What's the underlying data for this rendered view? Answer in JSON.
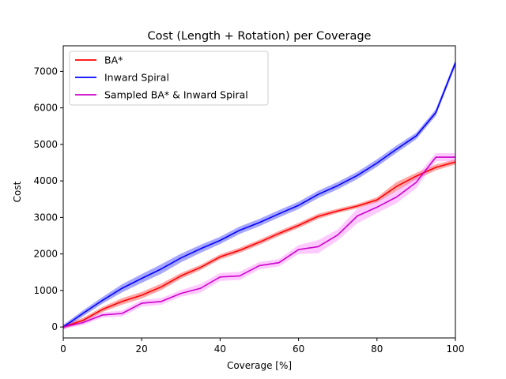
{
  "chart_data": {
    "type": "line",
    "title": "Cost (Length + Rotation) per Coverage",
    "xlabel": "Coverage [%]",
    "ylabel": "Cost",
    "xlim": [
      0,
      100
    ],
    "ylim": [
      -300,
      7700
    ],
    "xticks": [
      0,
      20,
      40,
      60,
      80,
      100
    ],
    "yticks": [
      0,
      1000,
      2000,
      3000,
      4000,
      5000,
      6000,
      7000
    ],
    "grid": false,
    "legend_position": "upper-left",
    "x": [
      0,
      5,
      10,
      15,
      20,
      25,
      30,
      35,
      40,
      45,
      50,
      55,
      60,
      65,
      70,
      75,
      80,
      85,
      90,
      95,
      100
    ],
    "series": [
      {
        "name": "BA*",
        "color": "#ff0000",
        "values": [
          0,
          180,
          480,
          700,
          870,
          1100,
          1400,
          1630,
          1920,
          2100,
          2320,
          2560,
          2780,
          3030,
          3180,
          3310,
          3480,
          3850,
          4130,
          4370,
          4520
        ],
        "band": [
          60,
          70,
          70,
          90,
          90,
          90,
          80,
          70,
          70,
          70,
          70,
          70,
          70,
          70,
          60,
          60,
          70,
          120,
          90,
          80,
          70
        ]
      },
      {
        "name": "Inward Spiral",
        "color": "#0000ff",
        "values": [
          0,
          370,
          730,
          1060,
          1330,
          1590,
          1890,
          2140,
          2370,
          2650,
          2860,
          3100,
          3330,
          3630,
          3870,
          4150,
          4490,
          4870,
          5230,
          5870,
          7230
        ],
        "band": [
          60,
          80,
          90,
          110,
          120,
          130,
          120,
          110,
          100,
          100,
          100,
          100,
          100,
          100,
          100,
          100,
          100,
          100,
          90,
          90,
          90
        ]
      },
      {
        "name": "Sampled BA* & Inward Spiral",
        "color": "#cc00cc",
        "band_color": "#ff66ff",
        "values": [
          0,
          120,
          330,
          370,
          650,
          700,
          920,
          1060,
          1370,
          1400,
          1680,
          1760,
          2120,
          2200,
          2520,
          3040,
          3280,
          3560,
          3960,
          4650,
          4650
        ],
        "band": [
          50,
          70,
          70,
          80,
          90,
          90,
          90,
          120,
          110,
          110,
          100,
          100,
          120,
          180,
          150,
          200,
          160,
          170,
          160,
          110,
          110
        ]
      }
    ]
  }
}
